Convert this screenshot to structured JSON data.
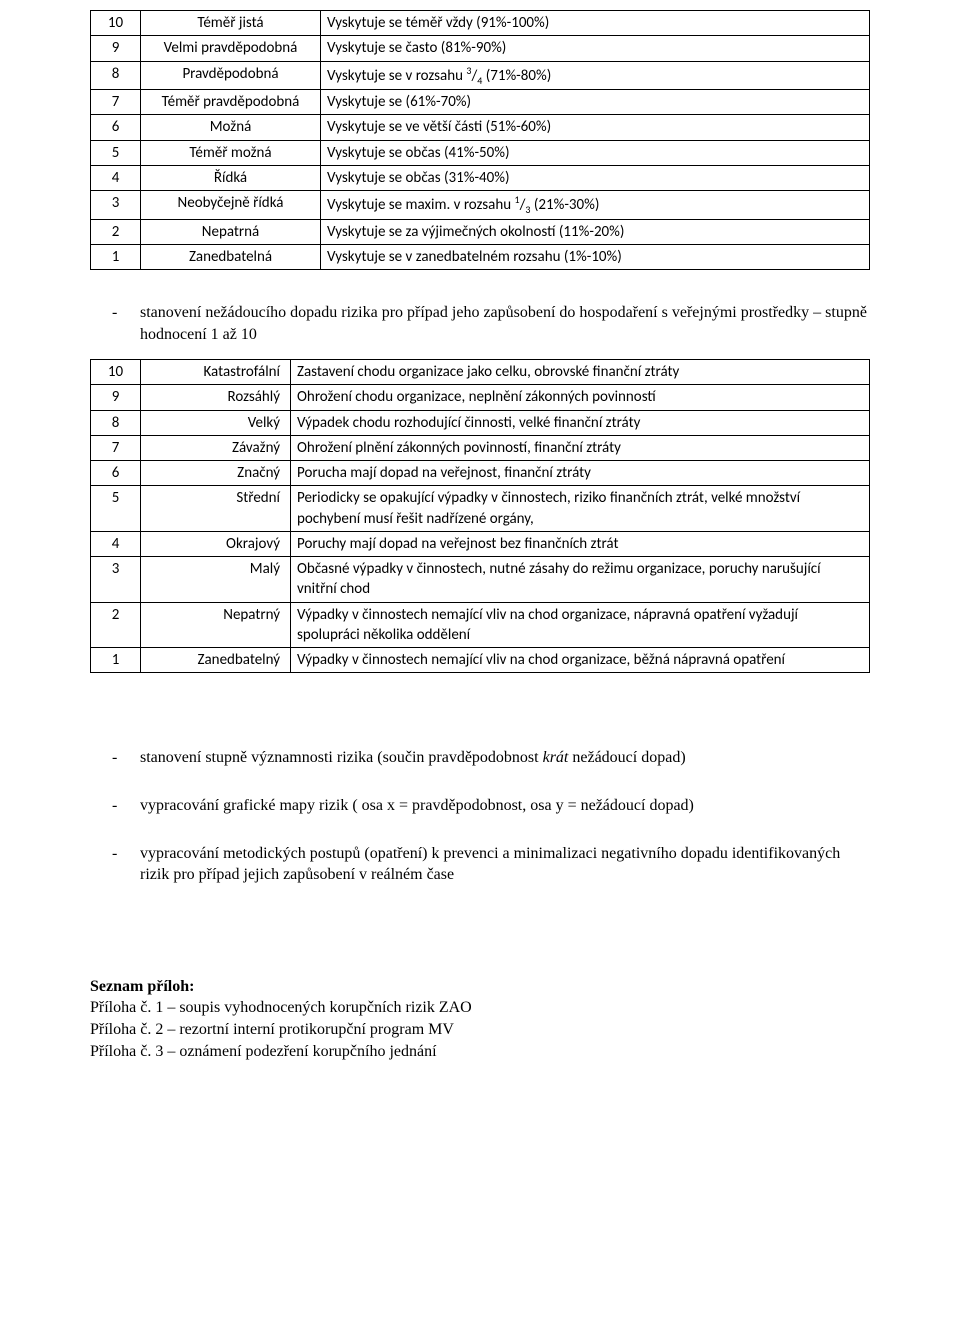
{
  "table1": {
    "col_widths": {
      "num": 50,
      "label": 180
    },
    "rows": [
      {
        "n": "10",
        "label": "Téměř jistá",
        "desc": "Vyskytuje se téměř vždy (91%-100%)"
      },
      {
        "n": "9",
        "label": "Velmi pravděpodobná",
        "desc": "Vyskytuje se často (81%-90%)"
      },
      {
        "n": "8",
        "label": "Pravděpodobná",
        "desc_html": "Vyskytuje se v rozsahu <sup>3</sup>/<sub>4</sub> (71%-80%)"
      },
      {
        "n": "7",
        "label": "Téměř pravděpodobná",
        "desc": "Vyskytuje se (61%-70%)"
      },
      {
        "n": "6",
        "label": "Možná",
        "desc": "Vyskytuje se ve větší části (51%-60%)"
      },
      {
        "n": "5",
        "label": "Téměř možná",
        "desc": "Vyskytuje se občas (41%-50%)"
      },
      {
        "n": "4",
        "label": "Řídká",
        "desc": "Vyskytuje se občas (31%-40%)"
      },
      {
        "n": "3",
        "label": "Neobyčejně řídká",
        "desc_html": "Vyskytuje se maxim. v rozsahu <sup>1</sup>/<sub>3</sub> (21%-30%)"
      },
      {
        "n": "2",
        "label": "Nepatrná",
        "desc": "Vyskytuje se za výjimečných okolností (11%-20%)"
      },
      {
        "n": "1",
        "label": "Zanedbatelná",
        "desc": "Vyskytuje se v zanedbatelném rozsahu (1%-10%)"
      }
    ]
  },
  "para1": "stanovení nežádoucího dopadu rizika pro případ jeho zapůsobení do hospodaření s veřejnými prostředky – stupně hodnocení 1 až 10",
  "table2": {
    "col_widths": {
      "num": 50,
      "label": 150
    },
    "rows": [
      {
        "n": "10",
        "label": "Katastrofální",
        "desc": "Zastavení chodu organizace jako celku, obrovské finanční ztráty"
      },
      {
        "n": "9",
        "label": "Rozsáhlý",
        "desc": "Ohrožení chodu organizace, neplnění zákonných povinností"
      },
      {
        "n": "8",
        "label": "Velký",
        "desc": "Výpadek chodu rozhodující činnosti, velké finanční ztráty"
      },
      {
        "n": "7",
        "label": "Závažný",
        "desc": "Ohrožení plnění zákonných povinností, finanční ztráty"
      },
      {
        "n": "6",
        "label": "Značný",
        "desc": "Porucha mají dopad na veřejnost, finanční ztráty"
      },
      {
        "n": "5",
        "label": "Střední",
        "desc": "Periodicky se opakující výpadky v činnostech, riziko finančních ztrát, velké množství pochybení musí řešit nadřízené orgány,"
      },
      {
        "n": "4",
        "label": "Okrajový",
        "desc": "Poruchy mají dopad na veřejnost bez finančních ztrát"
      },
      {
        "n": "3",
        "label": "Malý",
        "desc": "Občasné výpadky v činnostech, nutné zásahy do režimu organizace, poruchy narušující vnitřní chod"
      },
      {
        "n": "2",
        "label": "Nepatrný",
        "desc": "Výpadky v činnostech nemající vliv na chod organizace, nápravná opatření vyžadují spolupráci několika oddělení"
      },
      {
        "n": "1",
        "label": "Zanedbatelný",
        "desc": "Výpadky v činnostech nemající vliv na chod organizace, běžná nápravná opatření"
      }
    ]
  },
  "bullets": [
    {
      "html": "stanovení stupně významnosti rizika (součin pravděpodobnost <i>krát</i> nežádoucí dopad)"
    },
    {
      "text": "vypracování grafické mapy rizik ( osa x = pravděpodobnost, osa y = nežádoucí dopad)"
    },
    {
      "text": "vypracování metodických postupů (opatření) k prevenci a minimalizaci negativního dopadu identifikovaných rizik pro případ jejich zapůsobení v reálném čase"
    }
  ],
  "attachments": {
    "title": "Seznam příloh:",
    "lines": [
      "Příloha č. 1 – soupis vyhodnocených korupčních rizik ZAO",
      "Příloha č. 2 – rezortní interní protikorupční program MV",
      "Příloha č. 3 – oznámení podezření korupčního jednání"
    ]
  }
}
